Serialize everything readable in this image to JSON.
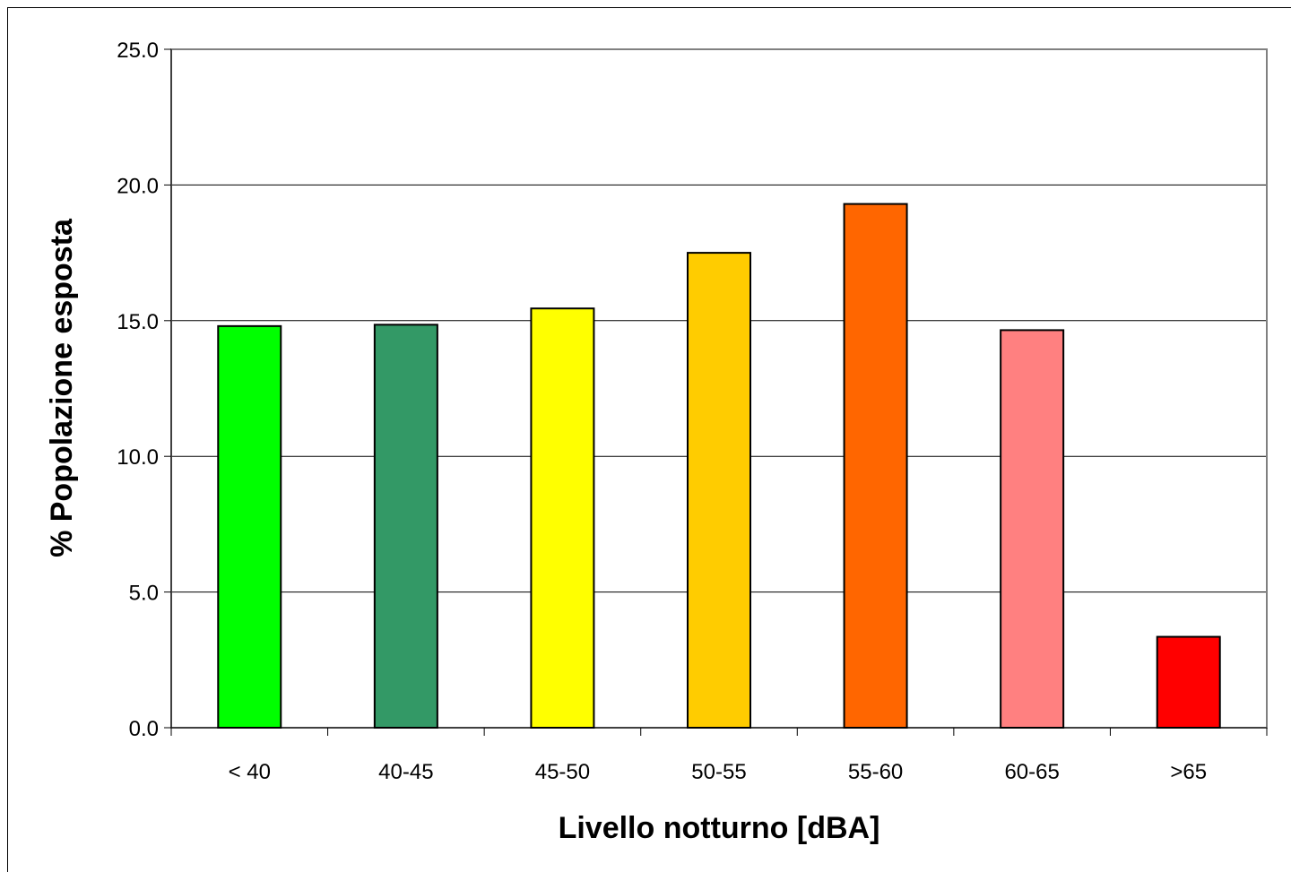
{
  "chart_data": {
    "type": "bar",
    "categories": [
      "< 40",
      "40-45",
      "45-50",
      "50-55",
      "55-60",
      "60-65",
      ">65"
    ],
    "values": [
      14.8,
      14.85,
      15.45,
      17.5,
      19.3,
      14.65,
      3.35
    ],
    "colors": [
      "#00ff00",
      "#339966",
      "#ffff00",
      "#ffcc00",
      "#ff6600",
      "#ff8080",
      "#ff0000"
    ],
    "xlabel": "Livello notturno [dBA]",
    "ylabel": "% Popolazione esposta",
    "ylim": [
      0,
      25
    ],
    "yticks": [
      "0.0",
      "5.0",
      "10.0",
      "15.0",
      "20.0",
      "25.0"
    ],
    "grid": true,
    "legend": "none"
  }
}
